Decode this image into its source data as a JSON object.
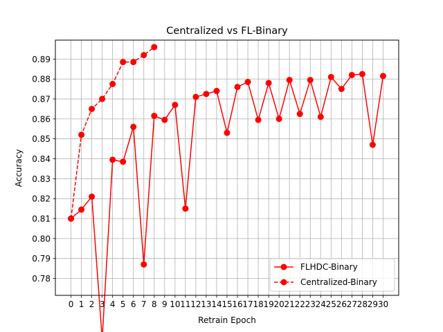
{
  "chart_data": {
    "type": "line",
    "title": "Centralized vs FL-Binary",
    "xlabel": "Retrain Epoch",
    "ylabel": "Accuracy",
    "xlim": [
      -1.5,
      31.5
    ],
    "ylim": [
      0.7715,
      0.8995
    ],
    "xticks": [
      0,
      1,
      2,
      3,
      4,
      5,
      6,
      7,
      8,
      9,
      10,
      11,
      12,
      13,
      14,
      15,
      16,
      17,
      18,
      19,
      20,
      21,
      22,
      23,
      24,
      25,
      26,
      27,
      28,
      29,
      30
    ],
    "yticks": [
      0.78,
      0.79,
      0.8,
      0.81,
      0.82,
      0.83,
      0.84,
      0.85,
      0.86,
      0.87,
      0.88,
      0.89
    ],
    "ytick_labels": [
      "0.78",
      "0.79",
      "0.80",
      "0.81",
      "0.82",
      "0.83",
      "0.84",
      "0.85",
      "0.86",
      "0.87",
      "0.88",
      "0.89"
    ],
    "grid": true,
    "legend_position": "lower-right",
    "series": [
      {
        "name": "FLHDC-Binary",
        "color": "#ff0000",
        "linestyle": "solid",
        "marker": "circle",
        "x": [
          0,
          1,
          2,
          3,
          4,
          5,
          6,
          7,
          8,
          9,
          10,
          11,
          12,
          13,
          14,
          15,
          16,
          17,
          18,
          19,
          20,
          21,
          22,
          23,
          24,
          25,
          26,
          27,
          28,
          29,
          30
        ],
        "y": [
          0.81,
          0.8145,
          0.821,
          0.7495,
          0.8395,
          0.8385,
          0.856,
          0.787,
          0.8615,
          0.8595,
          0.867,
          0.815,
          0.871,
          0.8725,
          0.874,
          0.853,
          0.876,
          0.8785,
          0.8595,
          0.878,
          0.86,
          0.8795,
          0.8625,
          0.8795,
          0.861,
          0.881,
          0.875,
          0.882,
          0.8825,
          0.847,
          0.8815
        ]
      },
      {
        "name": "Centralized-Binary",
        "color": "#ff0000",
        "linestyle": "dashed",
        "marker": "circle",
        "x": [
          0,
          1,
          2,
          3,
          4,
          5,
          6,
          7,
          8
        ],
        "y": [
          0.81,
          0.852,
          0.865,
          0.87,
          0.8775,
          0.8885,
          0.8885,
          0.892,
          0.896
        ]
      }
    ]
  }
}
